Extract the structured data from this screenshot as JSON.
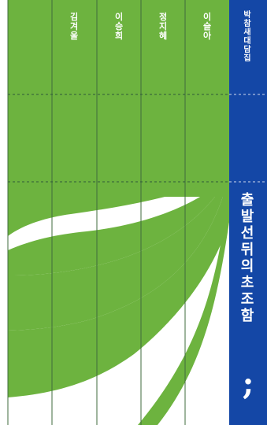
{
  "authors": [
    "김겨울",
    "이승희",
    "정지혜",
    "이슬아"
  ],
  "series": "박참새 대담집",
  "title": "출발선 뒤의 초조함",
  "publisher_mark": ";",
  "colors": {
    "green": "#6db33f",
    "blue": "#1447a6",
    "white": "#ffffff",
    "line": "#3f6b3c"
  }
}
